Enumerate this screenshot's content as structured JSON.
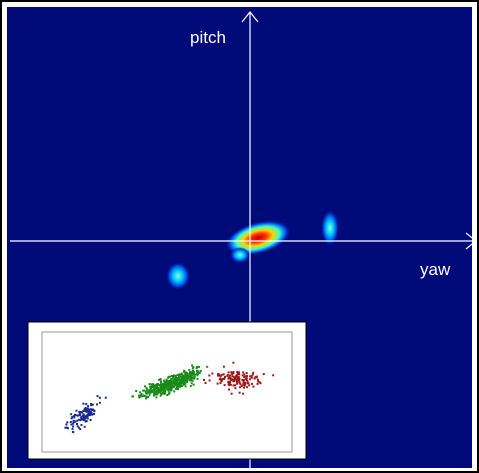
{
  "axes": {
    "vertical_label": "pitch",
    "horizontal_label": "yaw"
  }
}
